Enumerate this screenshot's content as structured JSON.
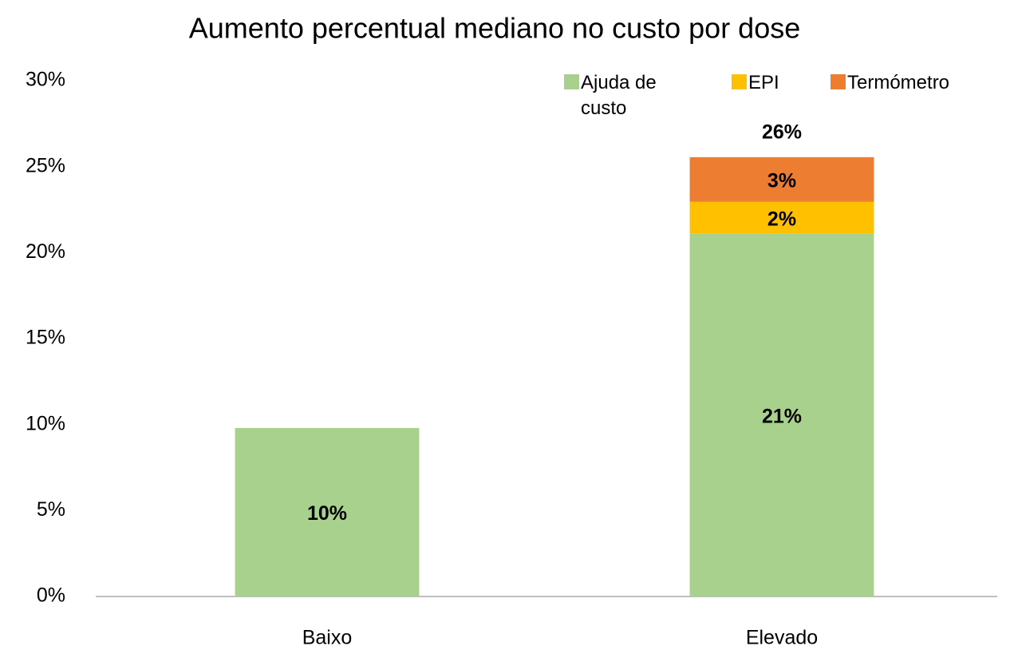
{
  "chart_data": {
    "type": "stacked_bar",
    "title": "Aumento percentual mediano no custo por dose",
    "categories": [
      "Baixo",
      "Elevado"
    ],
    "series": [
      {
        "name": "Ajuda de custo",
        "color": "#a9d18e",
        "values": [
          9.8,
          21.1
        ],
        "value_labels": [
          "10%",
          "21%"
        ]
      },
      {
        "name": "EPI",
        "color": "#ffc000",
        "values": [
          null,
          1.85
        ],
        "value_labels": [
          null,
          "2%"
        ]
      },
      {
        "name": "Termómetro",
        "color": "#ed7d31",
        "values": [
          null,
          2.6
        ],
        "value_labels": [
          null,
          "3%"
        ]
      }
    ],
    "total_labels": [
      null,
      "26%"
    ],
    "ylim": [
      0,
      30
    ],
    "yticks": [
      {
        "value": 0,
        "label": "0%"
      },
      {
        "value": 5,
        "label": "5%"
      },
      {
        "value": 10,
        "label": "10%"
      },
      {
        "value": 15,
        "label": "15%"
      },
      {
        "value": 20,
        "label": "20%"
      },
      {
        "value": 25,
        "label": "25%"
      },
      {
        "value": 30,
        "label": "30%"
      }
    ],
    "legend": "top-right"
  }
}
